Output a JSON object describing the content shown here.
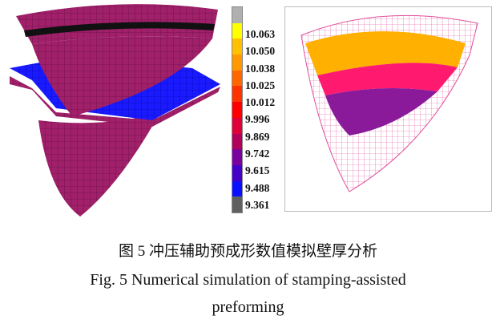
{
  "legend": {
    "labels": [
      "10.063",
      "10.050",
      "10.038",
      "10.025",
      "10.012",
      "9.996",
      "9.869",
      "9.742",
      "9.615",
      "9.488",
      "9.361"
    ],
    "colors": [
      "#b0b0b0",
      "#ffff00",
      "#ffc000",
      "#ff9900",
      "#ff6600",
      "#ff3300",
      "#ff0000",
      "#e0003a",
      "#b0005a",
      "#7a00a0",
      "#4400c8",
      "#0a10ff",
      "#606060"
    ]
  },
  "caption": {
    "cn": "图 5  冲压辅助预成形数值模拟壁厚分析",
    "en_line1": "Fig. 5 Numerical simulation of stamping-assisted",
    "en_line2": "preforming"
  }
}
